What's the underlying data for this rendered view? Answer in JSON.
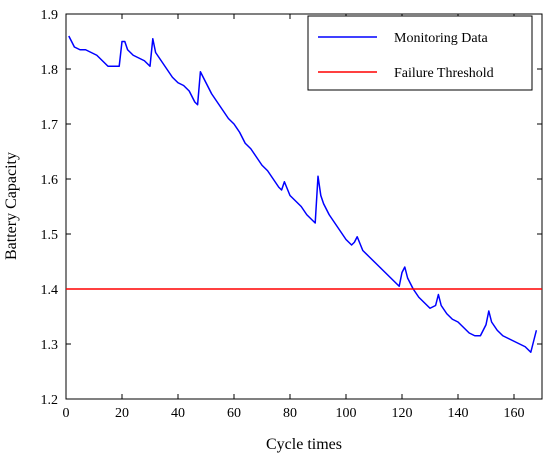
{
  "chart_data": {
    "type": "line",
    "title": "",
    "xlabel": "Cycle times",
    "ylabel": "Battery Capacity",
    "xlim": [
      0,
      170
    ],
    "ylim": [
      1.2,
      1.9
    ],
    "xticks": [
      0,
      20,
      40,
      60,
      80,
      100,
      120,
      140,
      160
    ],
    "yticks": [
      1.2,
      1.3,
      1.4,
      1.5,
      1.6,
      1.7,
      1.8,
      1.9
    ],
    "xtick_labels": [
      "0",
      "20",
      "40",
      "60",
      "80",
      "100",
      "120",
      "140",
      "160"
    ],
    "ytick_labels": [
      "1.2",
      "1.3",
      "1.4",
      "1.5",
      "1.6",
      "1.7",
      "1.8",
      "1.9"
    ],
    "grid": false,
    "legend_position": "top-right",
    "series": [
      {
        "name": "Monitoring Data",
        "color": "#0000ff",
        "x": [
          1,
          2,
          3,
          5,
          7,
          9,
          11,
          13,
          15,
          17,
          19,
          20,
          21,
          22,
          24,
          26,
          28,
          29,
          30,
          31,
          32,
          34,
          36,
          38,
          40,
          42,
          44,
          46,
          47,
          48,
          50,
          52,
          54,
          56,
          58,
          60,
          62,
          64,
          66,
          68,
          70,
          72,
          74,
          76,
          77,
          78,
          80,
          82,
          84,
          86,
          88,
          89,
          90,
          91,
          92,
          94,
          96,
          98,
          100,
          102,
          103,
          104,
          106,
          108,
          110,
          112,
          114,
          116,
          118,
          119,
          120,
          121,
          122,
          124,
          126,
          128,
          130,
          132,
          133,
          134,
          136,
          138,
          140,
          142,
          144,
          146,
          148,
          149,
          150,
          151,
          152,
          154,
          156,
          158,
          160,
          162,
          164,
          165,
          166,
          167,
          168
        ],
        "values": [
          1.86,
          1.85,
          1.84,
          1.835,
          1.835,
          1.83,
          1.825,
          1.815,
          1.805,
          1.805,
          1.805,
          1.85,
          1.85,
          1.835,
          1.825,
          1.82,
          1.815,
          1.81,
          1.805,
          1.855,
          1.83,
          1.815,
          1.8,
          1.785,
          1.775,
          1.77,
          1.76,
          1.74,
          1.735,
          1.795,
          1.775,
          1.755,
          1.74,
          1.725,
          1.71,
          1.7,
          1.685,
          1.665,
          1.655,
          1.64,
          1.625,
          1.615,
          1.6,
          1.585,
          1.58,
          1.595,
          1.57,
          1.56,
          1.55,
          1.535,
          1.525,
          1.52,
          1.605,
          1.57,
          1.555,
          1.535,
          1.52,
          1.505,
          1.49,
          1.48,
          1.485,
          1.495,
          1.47,
          1.46,
          1.45,
          1.44,
          1.43,
          1.42,
          1.41,
          1.405,
          1.43,
          1.44,
          1.42,
          1.4,
          1.385,
          1.375,
          1.365,
          1.37,
          1.39,
          1.37,
          1.355,
          1.345,
          1.34,
          1.33,
          1.32,
          1.315,
          1.315,
          1.325,
          1.335,
          1.36,
          1.34,
          1.325,
          1.315,
          1.31,
          1.305,
          1.3,
          1.295,
          1.29,
          1.285,
          1.305,
          1.325
        ]
      },
      {
        "name": "Failure Threshold",
        "color": "#ff0000",
        "x": [
          0,
          170
        ],
        "values": [
          1.4,
          1.4
        ]
      }
    ]
  }
}
